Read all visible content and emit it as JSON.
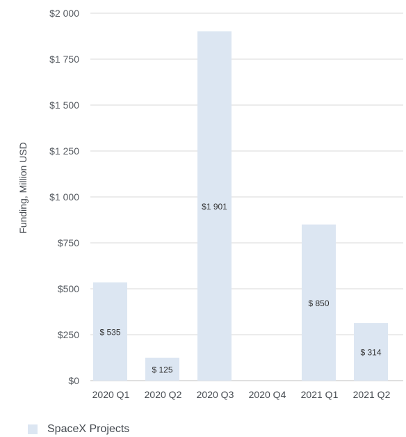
{
  "chart_data": {
    "type": "bar",
    "ylabel": "Funding, Million USD",
    "ylim": [
      0,
      2000
    ],
    "yticks": [
      0,
      250,
      500,
      750,
      1000,
      1250,
      1500,
      1750,
      2000
    ],
    "ytick_labels": [
      "$0",
      "$250",
      "$500",
      "$750",
      "$1 000",
      "$1 250",
      "$1 500",
      "$1 750",
      "$2 000"
    ],
    "categories": [
      "2020 Q1",
      "2020 Q2",
      "2020 Q3",
      "2020 Q4",
      "2021 Q1",
      "2021 Q2"
    ],
    "series": [
      {
        "name": "SpaceX Projects",
        "values": [
          535,
          125,
          1901,
          0,
          850,
          314
        ],
        "data_labels": [
          "$ 535",
          "$ 125",
          "$1 901",
          "",
          "$ 850",
          "$ 314"
        ],
        "color": "#dce6f2"
      }
    ],
    "grid": true,
    "legend": "bottom-left"
  },
  "colors": {
    "bar": "#dce6f2",
    "grid": "#d9d9d9",
    "axis": "#bfbfbf"
  }
}
